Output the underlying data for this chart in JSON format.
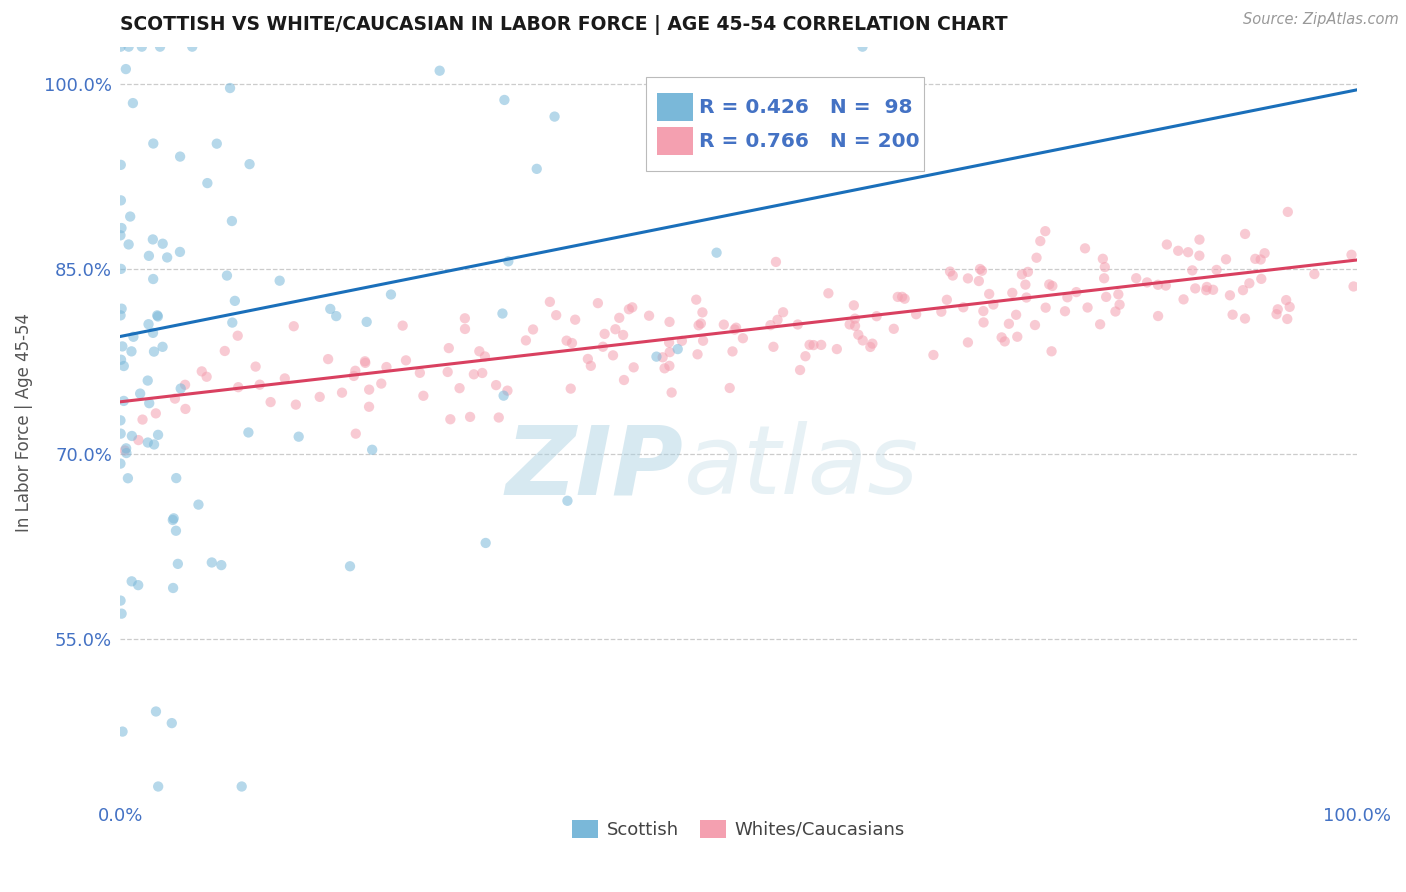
{
  "title": "SCOTTISH VS WHITE/CAUCASIAN IN LABOR FORCE | AGE 45-54 CORRELATION CHART",
  "source": "Source: ZipAtlas.com",
  "ylabel": "In Labor Force | Age 45-54",
  "xlim": [
    0.0,
    1.0
  ],
  "ylim": [
    0.42,
    1.03
  ],
  "yticks": [
    0.55,
    0.7,
    0.85,
    1.0
  ],
  "ytick_labels": [
    "55.0%",
    "70.0%",
    "85.0%",
    "100.0%"
  ],
  "xtick_labels": [
    "0.0%",
    "100.0%"
  ],
  "watermark_zip": "ZIP",
  "watermark_atlas": "atlas",
  "legend_blue_R": 0.426,
  "legend_blue_N": 98,
  "legend_pink_R": 0.766,
  "legend_pink_N": 200,
  "blue_color": "#7ab8d9",
  "pink_color": "#f4a0b0",
  "blue_line_color": "#1a6fba",
  "pink_line_color": "#d94060",
  "axis_color": "#555555",
  "grid_color": "#cccccc",
  "background_color": "#ffffff",
  "scatter_alpha": 0.55,
  "scatter_size": 55,
  "blue_slope": 0.2,
  "blue_intercept": 0.795,
  "pink_slope": 0.115,
  "pink_intercept": 0.742
}
